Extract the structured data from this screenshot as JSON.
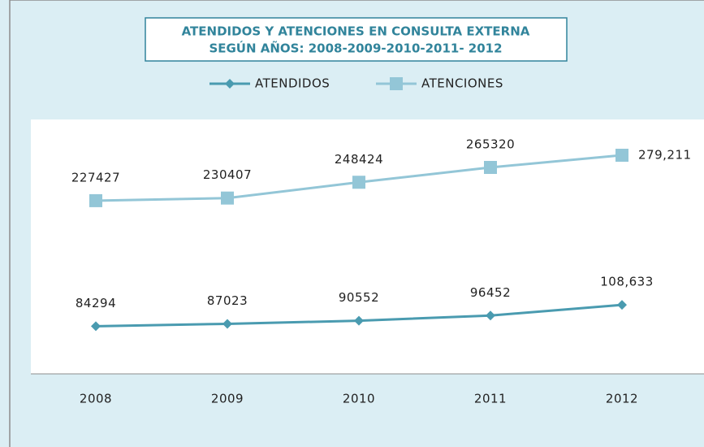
{
  "chart_data": {
    "type": "line",
    "title": [
      "ATENDIDOS Y ATENCIONES EN CONSULTA EXTERNA",
      "SEGÚN AÑOS: 2008-2009-2010-2011- 2012"
    ],
    "categories": [
      "2008",
      "2009",
      "2010",
      "2011",
      "2012"
    ],
    "series": [
      {
        "name": "ATENDIDOS",
        "color": "#4a9bb0",
        "marker": "diamond",
        "values": [
          84294,
          87023,
          90552,
          96452,
          108633
        ],
        "value_labels": [
          "84294",
          "87023",
          "90552",
          "96452",
          "108,633"
        ]
      },
      {
        "name": "ATENCIONES",
        "color": "#93c6d7",
        "marker": "square",
        "values": [
          227427,
          230407,
          248424,
          265320,
          279211
        ],
        "value_labels": [
          "227427",
          "230407",
          "248424",
          "265320",
          "279,211"
        ]
      }
    ],
    "ylim": [
      30000,
      320000
    ],
    "legend": "top"
  }
}
